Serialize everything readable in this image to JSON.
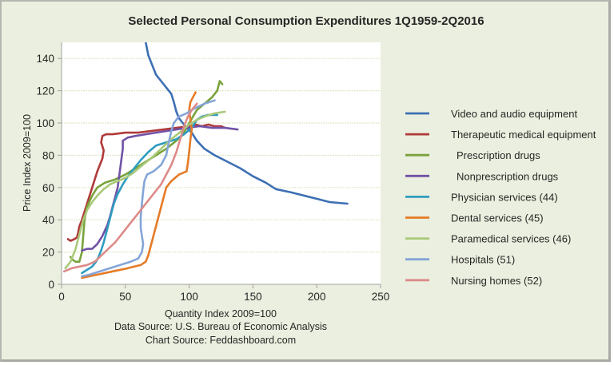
{
  "chart_data": {
    "type": "line",
    "title": "Selected Personal Consumption  Expenditures 1Q1959-2Q2016",
    "xlabel": "Quantity Index 2009=100",
    "ylabel": "Price Index 2009=100",
    "xlim": [
      0,
      250
    ],
    "ylim": [
      0,
      150
    ],
    "xticks": [
      "0",
      "50",
      "100",
      "150",
      "200",
      "250"
    ],
    "yticks": [
      "0",
      "20",
      "40",
      "60",
      "80",
      "100",
      "120",
      "140"
    ],
    "grid": "horizontal",
    "legend_position": "right",
    "footnotes": [
      "Data Source: U.S. Bureau of Economic Analysis",
      "Chart Source: Feddashboard.com"
    ],
    "series": [
      {
        "name": "Video and audio equipment",
        "color": "#3d6fb4",
        "points": [
          [
            66,
            150
          ],
          [
            68,
            142
          ],
          [
            71,
            136
          ],
          [
            74,
            130
          ],
          [
            78,
            126
          ],
          [
            82,
            122
          ],
          [
            86,
            118
          ],
          [
            88,
            113
          ],
          [
            89,
            110
          ],
          [
            90,
            107
          ],
          [
            92,
            103
          ],
          [
            95,
            100
          ],
          [
            98,
            97
          ],
          [
            102,
            94
          ],
          [
            106,
            89
          ],
          [
            112,
            84
          ],
          [
            120,
            80
          ],
          [
            130,
            76
          ],
          [
            140,
            72
          ],
          [
            150,
            67
          ],
          [
            160,
            63
          ],
          [
            168,
            59
          ],
          [
            180,
            57
          ],
          [
            190,
            55
          ],
          [
            200,
            53
          ],
          [
            210,
            51
          ],
          [
            224,
            50
          ]
        ]
      },
      {
        "name": "Therapeutic medical equipment",
        "color": "#b03a3a",
        "points": [
          [
            5,
            28
          ],
          [
            7,
            27
          ],
          [
            10,
            28
          ],
          [
            12,
            29
          ],
          [
            13,
            32
          ],
          [
            14,
            36
          ],
          [
            16,
            40
          ],
          [
            18,
            45
          ],
          [
            20,
            50
          ],
          [
            22,
            55
          ],
          [
            24,
            60
          ],
          [
            26,
            65
          ],
          [
            28,
            70
          ],
          [
            30,
            74
          ],
          [
            32,
            78
          ],
          [
            33,
            83
          ],
          [
            31,
            88
          ],
          [
            32,
            92
          ],
          [
            35,
            93
          ],
          [
            40,
            93
          ],
          [
            50,
            94
          ],
          [
            60,
            94
          ],
          [
            70,
            95
          ],
          [
            80,
            96
          ],
          [
            90,
            97
          ],
          [
            100,
            98
          ],
          [
            105,
            99
          ],
          [
            110,
            98
          ],
          [
            115,
            99
          ],
          [
            120,
            98
          ],
          [
            125,
            98
          ],
          [
            128,
            97
          ]
        ]
      },
      {
        "name": "Prescription drugs",
        "color": "#79a33c",
        "points": [
          [
            7,
            17
          ],
          [
            9,
            15
          ],
          [
            11,
            14
          ],
          [
            14,
            14
          ],
          [
            16,
            20
          ],
          [
            17,
            30
          ],
          [
            18,
            40
          ],
          [
            20,
            48
          ],
          [
            24,
            55
          ],
          [
            28,
            60
          ],
          [
            34,
            63
          ],
          [
            42,
            65
          ],
          [
            50,
            68
          ],
          [
            58,
            72
          ],
          [
            66,
            76
          ],
          [
            74,
            80
          ],
          [
            82,
            84
          ],
          [
            90,
            89
          ],
          [
            96,
            94
          ],
          [
            100,
            100
          ],
          [
            103,
            104
          ],
          [
            106,
            108
          ],
          [
            112,
            112
          ],
          [
            118,
            116
          ],
          [
            122,
            120
          ],
          [
            124,
            126
          ],
          [
            126,
            124
          ]
        ]
      },
      {
        "name": "Nonprescription drugs",
        "color": "#7152a6",
        "points": [
          [
            16,
            21
          ],
          [
            20,
            22
          ],
          [
            24,
            22
          ],
          [
            28,
            25
          ],
          [
            32,
            30
          ],
          [
            36,
            37
          ],
          [
            38,
            42
          ],
          [
            40,
            48
          ],
          [
            42,
            54
          ],
          [
            44,
            60
          ],
          [
            45,
            66
          ],
          [
            46,
            72
          ],
          [
            47,
            78
          ],
          [
            48,
            84
          ],
          [
            48,
            89
          ],
          [
            52,
            91
          ],
          [
            58,
            92
          ],
          [
            66,
            93
          ],
          [
            74,
            94
          ],
          [
            82,
            95
          ],
          [
            90,
            96
          ],
          [
            98,
            97
          ],
          [
            108,
            98
          ],
          [
            118,
            97
          ],
          [
            128,
            97
          ],
          [
            138,
            96
          ]
        ]
      },
      {
        "name": "Physician services (44)",
        "color": "#2f9cbf",
        "points": [
          [
            16,
            7
          ],
          [
            20,
            9
          ],
          [
            24,
            11
          ],
          [
            27,
            14
          ],
          [
            29,
            17
          ],
          [
            31,
            21
          ],
          [
            33,
            26
          ],
          [
            35,
            32
          ],
          [
            37,
            38
          ],
          [
            39,
            44
          ],
          [
            41,
            50
          ],
          [
            44,
            56
          ],
          [
            48,
            62
          ],
          [
            52,
            67
          ],
          [
            57,
            72
          ],
          [
            62,
            77
          ],
          [
            68,
            82
          ],
          [
            74,
            86
          ],
          [
            82,
            88
          ],
          [
            90,
            90
          ],
          [
            96,
            93
          ],
          [
            102,
            97
          ],
          [
            106,
            102
          ],
          [
            110,
            104
          ],
          [
            115,
            105
          ],
          [
            122,
            105
          ]
        ]
      },
      {
        "name": "Dental services (45)",
        "color": "#e57b27",
        "points": [
          [
            16,
            4
          ],
          [
            28,
            6
          ],
          [
            40,
            8
          ],
          [
            52,
            10
          ],
          [
            62,
            12
          ],
          [
            66,
            14
          ],
          [
            68,
            18
          ],
          [
            70,
            24
          ],
          [
            72,
            30
          ],
          [
            74,
            36
          ],
          [
            76,
            42
          ],
          [
            78,
            48
          ],
          [
            80,
            54
          ],
          [
            82,
            60
          ],
          [
            86,
            64
          ],
          [
            92,
            68
          ],
          [
            98,
            70
          ],
          [
            99,
            75
          ],
          [
            100,
            82
          ],
          [
            101,
            90
          ],
          [
            102,
            96
          ],
          [
            101,
            102
          ],
          [
            100,
            108
          ],
          [
            101,
            113
          ],
          [
            103,
            116
          ],
          [
            105,
            119
          ]
        ]
      },
      {
        "name": "Paramedical services (46)",
        "color": "#a9c97a",
        "points": [
          [
            3,
            10
          ],
          [
            5,
            12
          ],
          [
            7,
            14
          ],
          [
            9,
            18
          ],
          [
            11,
            22
          ],
          [
            13,
            28
          ],
          [
            15,
            34
          ],
          [
            17,
            40
          ],
          [
            20,
            46
          ],
          [
            24,
            51
          ],
          [
            28,
            55
          ],
          [
            33,
            59
          ],
          [
            38,
            62
          ],
          [
            44,
            64
          ],
          [
            50,
            66
          ],
          [
            56,
            69
          ],
          [
            62,
            73
          ],
          [
            70,
            78
          ],
          [
            78,
            84
          ],
          [
            86,
            90
          ],
          [
            94,
            95
          ],
          [
            100,
            99
          ],
          [
            106,
            102
          ],
          [
            112,
            104
          ],
          [
            120,
            106
          ],
          [
            128,
            107
          ]
        ]
      },
      {
        "name": "Hospitals (51)",
        "color": "#84a5d8",
        "points": [
          [
            16,
            5
          ],
          [
            22,
            6
          ],
          [
            30,
            8
          ],
          [
            38,
            10
          ],
          [
            46,
            12
          ],
          [
            54,
            14
          ],
          [
            60,
            16
          ],
          [
            63,
            20
          ],
          [
            64,
            25
          ],
          [
            63,
            30
          ],
          [
            62,
            35
          ],
          [
            62,
            42
          ],
          [
            63,
            50
          ],
          [
            64,
            58
          ],
          [
            65,
            64
          ],
          [
            67,
            68
          ],
          [
            72,
            70
          ],
          [
            78,
            74
          ],
          [
            82,
            80
          ],
          [
            84,
            88
          ],
          [
            86,
            95
          ],
          [
            88,
            100
          ],
          [
            92,
            104
          ],
          [
            98,
            106
          ],
          [
            104,
            109
          ],
          [
            112,
            112
          ],
          [
            120,
            114
          ]
        ]
      },
      {
        "name": "Nursing homes (52)",
        "color": "#dc8b89",
        "points": [
          [
            2,
            8
          ],
          [
            8,
            10
          ],
          [
            14,
            11
          ],
          [
            20,
            12
          ],
          [
            26,
            14
          ],
          [
            30,
            17
          ],
          [
            34,
            20
          ],
          [
            38,
            23
          ],
          [
            42,
            26
          ],
          [
            46,
            30
          ],
          [
            50,
            34
          ],
          [
            54,
            38
          ],
          [
            58,
            42
          ],
          [
            62,
            46
          ],
          [
            66,
            50
          ],
          [
            70,
            54
          ],
          [
            74,
            58
          ],
          [
            78,
            62
          ],
          [
            82,
            68
          ],
          [
            86,
            74
          ],
          [
            90,
            82
          ],
          [
            93,
            90
          ],
          [
            96,
            98
          ],
          [
            99,
            104
          ],
          [
            102,
            108
          ],
          [
            106,
            112
          ]
        ]
      }
    ]
  }
}
